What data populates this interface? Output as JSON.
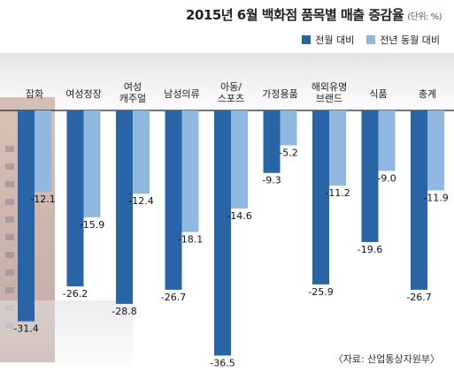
{
  "title": "2015년 6월 백화점 품목별 매출 증감율",
  "unit": "(단위: %)",
  "source": "〈자료: 산업통상자원부〉",
  "legend": {
    "series1": "전월 대비",
    "series2": "전년 동월 대비"
  },
  "colors": {
    "series1": "#2864a6",
    "series2": "#8fb8e0",
    "axis": "#222222"
  },
  "chart_data": {
    "type": "bar",
    "title": "2015년 6월 백화점 품목별 매출 증감율",
    "categories": [
      "잡화",
      "여성정장",
      "여성 캐주얼",
      "남성의류",
      "아동/ 스포츠",
      "가정용품",
      "해외유명 브랜드",
      "식품",
      "총계"
    ],
    "category_lines": [
      [
        "잡화"
      ],
      [
        "여성정장"
      ],
      [
        "여성",
        "캐주얼"
      ],
      [
        "남성의류"
      ],
      [
        "아동/",
        "스포츠"
      ],
      [
        "가정용품"
      ],
      [
        "해외유명",
        "브랜드"
      ],
      [
        "식품"
      ],
      [
        "총계"
      ]
    ],
    "series": [
      {
        "name": "전월 대비",
        "values": [
          -31.4,
          -26.2,
          -28.8,
          -26.7,
          -36.5,
          -9.3,
          -25.9,
          -19.6,
          -26.7
        ]
      },
      {
        "name": "전년 동월 대비",
        "values": [
          -12.1,
          -15.9,
          -12.4,
          -18.1,
          -14.6,
          -5.2,
          -11.2,
          -9.0,
          -11.9
        ]
      }
    ],
    "value_labels": [
      [
        "-31.4",
        "-26.2",
        "-28.8",
        "-26.7",
        "-36.5",
        "-9.3",
        "-25.9",
        "-19.6",
        "-26.7"
      ],
      [
        "-12.1",
        "-15.9",
        "-12.4",
        "-18.1",
        "-14.6",
        "-5.2",
        "-11.2",
        "-9.0",
        "-11.9"
      ]
    ],
    "ylim": [
      -40,
      0
    ],
    "legend_position": "top-right",
    "grid": false
  }
}
